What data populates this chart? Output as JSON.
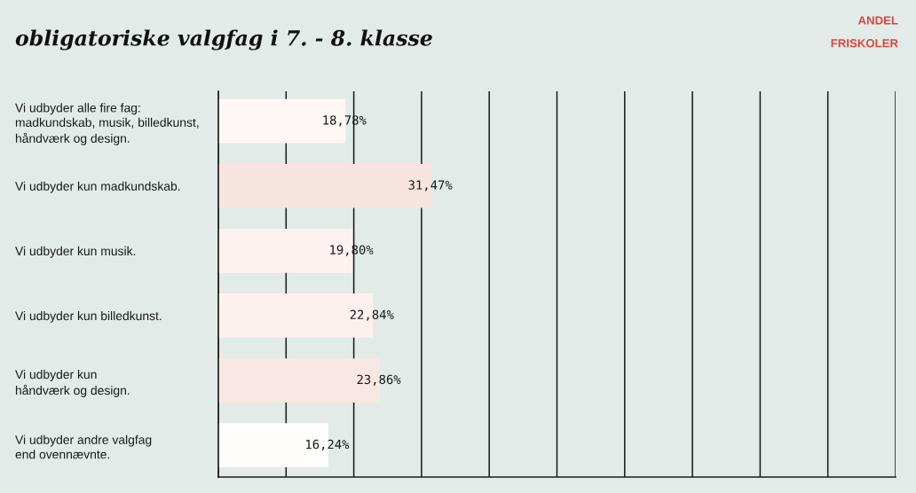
{
  "chart_data": {
    "type": "bar",
    "orientation": "horizontal",
    "title": "obligatoriske valgfag i 7. - 8. klasse",
    "subtitle": "ANDEL\nFRISKOLER",
    "categories": [
      "Vi udbyder alle fire fag:\nmadkundskab, musik, billedkunst,\nhåndværk og design.",
      "Vi udbyder kun madkundskab.",
      "Vi udbyder kun musik.",
      "Vi udbyder kun billedkunst.",
      "Vi udbyder kun\nhåndværk og design.",
      "Vi udbyder andre valgfag\nend ovennævnte."
    ],
    "values": [
      18.78,
      31.47,
      19.8,
      22.84,
      23.86,
      16.24
    ],
    "colors": [
      "#fdf8f5",
      "#f8e4df",
      "#fcf2ef",
      "#fcf1ee",
      "#f9e7e3",
      "#fefdfb"
    ],
    "value_labels": [
      "18,78%",
      "31,47%",
      "19,80%",
      "22,84%",
      "23,86%",
      "16,24%"
    ],
    "xlim": [
      0,
      100
    ],
    "xticks": [
      {
        "value": 0,
        "label": null
      },
      {
        "value": 10,
        "label": null
      },
      {
        "value": 20,
        "label": null
      },
      {
        "value": 30,
        "label": null
      },
      {
        "value": 40,
        "label": null
      },
      {
        "value": 50,
        "label": null
      },
      {
        "value": 60,
        "label": null
      },
      {
        "value": 70,
        "label": null
      },
      {
        "value": 80,
        "label": null
      },
      {
        "value": 90,
        "label": null
      },
      {
        "value": 100,
        "label": null
      }
    ],
    "tick_labels": "y",
    "grid": "x"
  }
}
